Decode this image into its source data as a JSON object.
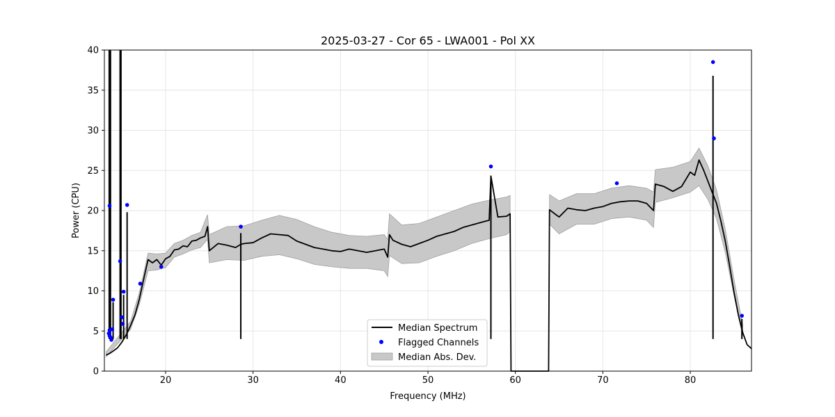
{
  "chart_data": {
    "type": "line",
    "title": "2025-03-27 - Cor 65 - LWA001 - Pol XX",
    "xlabel": "Frequency (MHz)",
    "ylabel": "Power (CPU)",
    "xlim": [
      13.0,
      87.0
    ],
    "ylim": [
      0,
      40
    ],
    "x_ticks": [
      20,
      30,
      40,
      50,
      60,
      70,
      80
    ],
    "y_ticks": [
      0,
      5,
      10,
      15,
      20,
      25,
      30,
      35,
      40
    ],
    "grid": true,
    "legend_position": "lower-center",
    "legend": [
      "Median Spectrum",
      "Flagged Channels",
      "Median Abs. Dev."
    ],
    "colors": {
      "median": "#000000",
      "flagged": "#0000ff",
      "mad": "#c8c8c8",
      "mad_edge": "#a0a0a0",
      "grid": "#e6e6e6"
    },
    "median_spectrum": {
      "x": [
        13.2,
        13.6,
        14.0,
        14.5,
        15.0,
        15.5,
        16.0,
        16.5,
        17.0,
        17.5,
        18.0,
        18.5,
        19.0,
        19.5,
        20.0,
        20.5,
        21.0,
        21.5,
        22.0,
        22.5,
        23.0,
        23.5,
        24.0,
        24.5,
        24.8,
        25.0,
        26.0,
        27.0,
        28.0,
        28.6,
        29.0,
        30.0,
        31.0,
        32.0,
        33.0,
        34.0,
        35.0,
        36.0,
        37.0,
        38.0,
        39.0,
        40.0,
        41.0,
        42.0,
        43.0,
        44.0,
        45.0,
        45.4,
        45.6,
        46.0,
        47.0,
        48.0,
        49.0,
        50.0,
        51.0,
        52.0,
        53.0,
        54.0,
        55.0,
        56.0,
        57.0,
        57.2,
        58.0,
        59.0,
        59.4,
        59.5,
        63.8,
        63.9,
        64.5,
        65.0,
        66.0,
        67.0,
        68.0,
        69.0,
        70.0,
        71.0,
        72.0,
        73.0,
        74.0,
        75.0,
        75.8,
        76.0,
        77.0,
        78.0,
        79.0,
        80.0,
        80.5,
        81.0,
        81.5,
        82.0,
        82.5,
        83.0,
        83.5,
        84.0,
        84.5,
        85.0,
        85.5,
        86.0,
        86.5,
        87.0
      ],
      "y": [
        2.0,
        2.2,
        2.5,
        2.9,
        3.6,
        4.5,
        5.7,
        7.0,
        9.0,
        11.5,
        13.9,
        13.5,
        13.9,
        13.2,
        14.0,
        14.3,
        15.1,
        15.2,
        15.6,
        15.5,
        16.2,
        16.3,
        16.6,
        16.8,
        18.0,
        15.0,
        15.9,
        15.7,
        15.4,
        15.8,
        15.9,
        16.0,
        16.6,
        17.1,
        17.0,
        16.9,
        16.2,
        15.8,
        15.4,
        15.2,
        15.0,
        14.9,
        15.2,
        15.0,
        14.8,
        15.0,
        15.2,
        14.2,
        17.0,
        16.3,
        15.8,
        15.5,
        15.9,
        16.3,
        16.8,
        17.1,
        17.4,
        17.9,
        18.2,
        18.5,
        18.8,
        24.3,
        19.2,
        19.3,
        19.6,
        0.0,
        0.0,
        20.1,
        19.6,
        19.2,
        20.3,
        20.1,
        20.0,
        20.3,
        20.5,
        20.9,
        21.1,
        21.2,
        21.2,
        20.9,
        20.0,
        23.3,
        23.0,
        22.4,
        23.0,
        24.8,
        24.4,
        26.3,
        25.1,
        23.7,
        22.3,
        20.9,
        18.7,
        16.2,
        13.1,
        9.8,
        7.0,
        4.8,
        3.3,
        2.8
      ]
    },
    "mad_band": {
      "x": [
        13.2,
        16.0,
        17.0,
        18.0,
        19.0,
        20.0,
        21.0,
        22.0,
        23.0,
        24.0,
        24.8,
        25.0,
        27.0,
        29.0,
        31.0,
        33.0,
        35.0,
        37.0,
        39.0,
        41.0,
        43.0,
        45.0,
        45.4,
        45.6,
        47.0,
        49.0,
        51.0,
        53.0,
        55.0,
        57.0,
        59.0,
        59.4
      ],
      "lower": [
        1.8,
        5.2,
        8.3,
        12.5,
        12.6,
        12.9,
        14.2,
        14.6,
        15.1,
        15.4,
        16.4,
        13.5,
        13.9,
        13.8,
        14.3,
        14.5,
        14.0,
        13.3,
        13.0,
        12.8,
        12.8,
        12.5,
        11.8,
        14.4,
        13.4,
        13.5,
        14.3,
        15.0,
        15.9,
        16.5,
        17.0,
        17.4
      ],
      "upper": [
        2.4,
        6.2,
        9.8,
        14.7,
        14.6,
        14.7,
        15.9,
        16.3,
        16.9,
        17.3,
        19.5,
        17.0,
        18.0,
        18.1,
        18.8,
        19.4,
        18.9,
        18.0,
        17.3,
        16.9,
        16.8,
        17.0,
        16.4,
        19.6,
        18.2,
        18.4,
        19.2,
        20.0,
        20.8,
        21.3,
        21.7,
        21.9
      ]
    },
    "mad_band_2": {
      "x": [
        63.9,
        65.0,
        67.0,
        69.0,
        71.0,
        73.0,
        75.0,
        75.8,
        76.0,
        78.0,
        80.0,
        81.0,
        82.0,
        83.0,
        84.0,
        85.0,
        86.0
      ],
      "lower": [
        18.3,
        17.1,
        18.3,
        18.3,
        19.0,
        19.2,
        18.8,
        17.9,
        21.0,
        21.6,
        22.3,
        23.1,
        21.4,
        19.0,
        14.8,
        9.4,
        4.4
      ],
      "upper": [
        22.0,
        21.2,
        22.1,
        22.1,
        22.8,
        23.1,
        22.8,
        22.3,
        25.1,
        25.4,
        26.1,
        27.8,
        25.6,
        22.6,
        17.7,
        11.4,
        5.8
      ]
    },
    "spikes": [
      {
        "x": 13.55,
        "y": 40.0
      },
      {
        "x": 13.7,
        "y": 40.0
      },
      {
        "x": 14.0,
        "y": 8.6
      },
      {
        "x": 14.8,
        "y": 40.0
      },
      {
        "x": 14.9,
        "y": 40.0
      },
      {
        "x": 15.2,
        "y": 9.5
      },
      {
        "x": 15.6,
        "y": 19.8
      },
      {
        "x": 28.6,
        "y": 17.2
      },
      {
        "x": 57.2,
        "y": 24.3
      },
      {
        "x": 82.6,
        "y": 36.8
      },
      {
        "x": 85.9,
        "y": 6.5
      }
    ],
    "flagged_channels": {
      "x": [
        13.6,
        13.5,
        13.6,
        13.7,
        13.8,
        13.9,
        13.6,
        14.0,
        14.8,
        15.0,
        15.1,
        15.2,
        15.6,
        17.1,
        19.5,
        28.6,
        57.2,
        71.6,
        82.6,
        82.7,
        85.9
      ],
      "y": [
        20.6,
        4.7,
        5.1,
        4.2,
        3.9,
        5.2,
        4.4,
        8.9,
        13.7,
        6.7,
        5.9,
        9.9,
        20.7,
        10.9,
        13.0,
        18.0,
        25.5,
        23.4,
        38.5,
        29.0,
        6.9
      ]
    }
  }
}
